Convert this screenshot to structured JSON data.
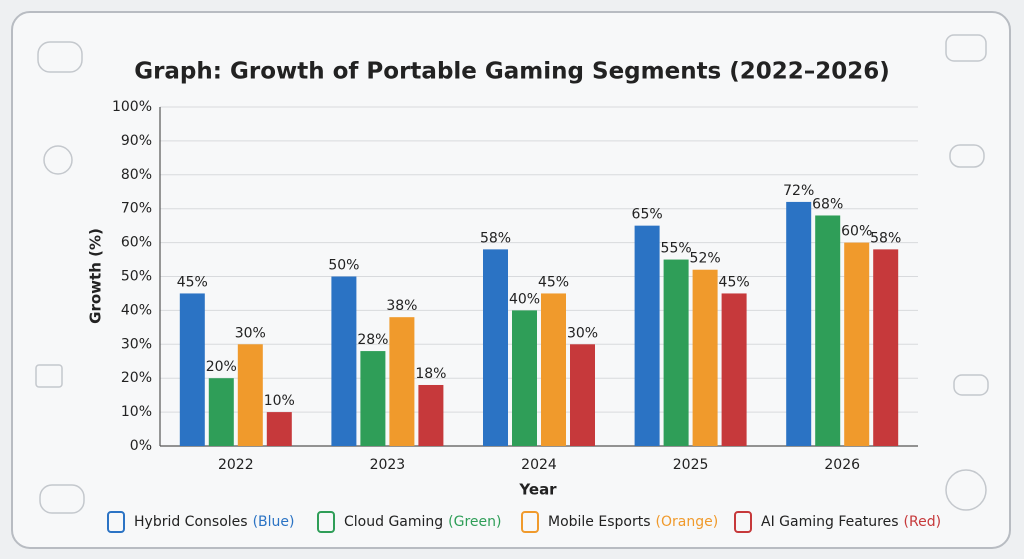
{
  "chart_data": {
    "type": "bar",
    "title": "Graph: Growth of Portable Gaming Segments (2022–2026)",
    "x_label": "Year",
    "y_label": "Growth (%)",
    "categories": [
      "2022",
      "2023",
      "2024",
      "2025",
      "2026"
    ],
    "series": [
      {
        "name": "Hybrid Consoles",
        "color_label": "(Blue)",
        "color": "#2b73c4",
        "values": [
          45,
          50,
          58,
          65,
          72
        ],
        "value_labels": [
          "45%",
          "50%",
          "58%",
          "65%",
          "72%"
        ]
      },
      {
        "name": "Cloud Gaming",
        "color_label": "(Green)",
        "color": "#2f9e58",
        "values": [
          20,
          28,
          40,
          55,
          68
        ],
        "value_labels": [
          "20%",
          "28%",
          "40%",
          "55%",
          "68%"
        ]
      },
      {
        "name": "Mobile Esports",
        "color_label": "(Orange)",
        "color": "#f09a2c",
        "values": [
          30,
          38,
          45,
          52,
          60
        ],
        "value_labels": [
          "30%",
          "38%",
          "45%",
          "52%",
          "60%"
        ]
      },
      {
        "name": "AI Gaming Features",
        "color_label": "(Red)",
        "color": "#c6393b",
        "values": [
          10,
          18,
          30,
          45,
          58
        ],
        "value_labels": [
          "10%",
          "18%",
          "30%",
          "45%",
          "58%"
        ]
      }
    ],
    "ylim": [
      0,
      100
    ],
    "yticks": [
      {
        "value": 0,
        "label": "0%"
      },
      {
        "value": 10,
        "label": "10%"
      },
      {
        "value": 20,
        "label": "20%"
      },
      {
        "value": 30,
        "label": "30%"
      },
      {
        "value": 40,
        "label": "40%"
      },
      {
        "value": 50,
        "label": "50%"
      },
      {
        "value": 60,
        "label": "60%"
      },
      {
        "value": 70,
        "label": "70%"
      },
      {
        "value": 80,
        "label": "80%"
      },
      {
        "value": 90,
        "label": "90%"
      },
      {
        "value": 100,
        "label": "100%"
      }
    ],
    "grid": true,
    "legend": "bottom"
  }
}
